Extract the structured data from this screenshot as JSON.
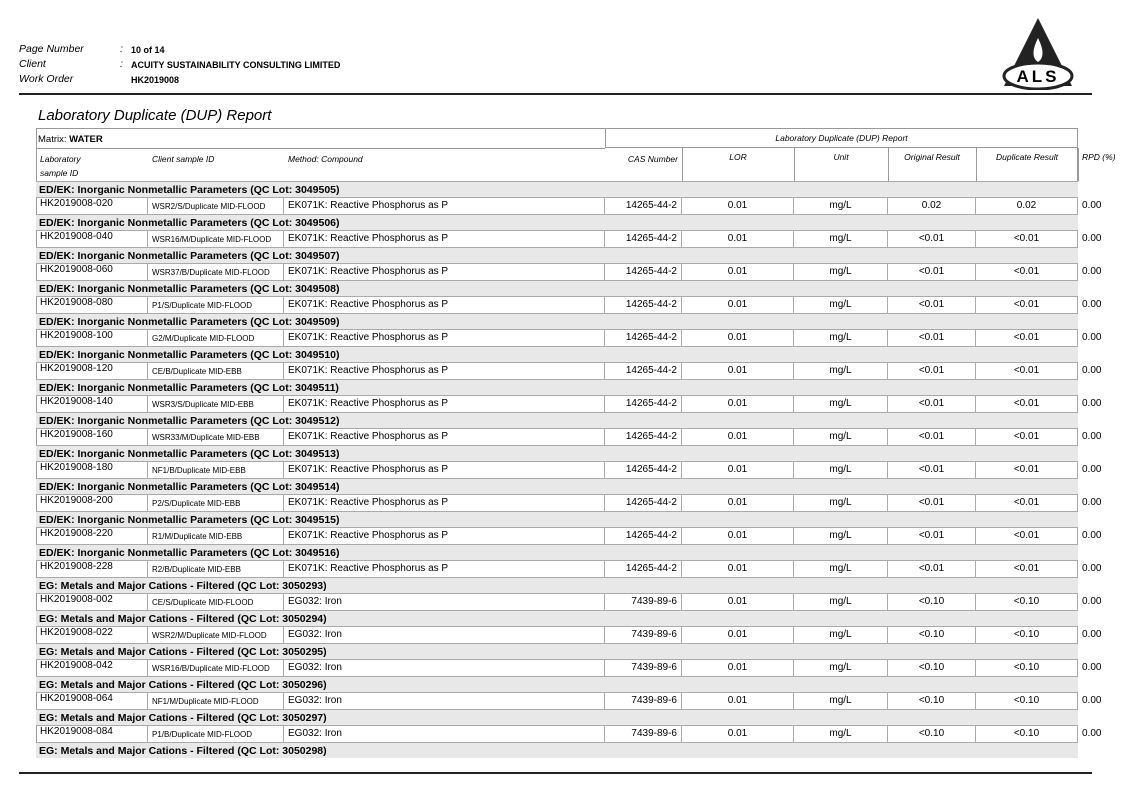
{
  "header": {
    "fields": [
      {
        "label": "Page Number",
        "sep": ":",
        "value": "10 of 14"
      },
      {
        "label": "Client",
        "sep": ":",
        "value": "ACUITY SUSTAINABILITY CONSULTING LIMITED"
      },
      {
        "label": "Work Order",
        "value": "HK2019008"
      }
    ]
  },
  "logo": "ALS",
  "title": "Laboratory Duplicate (DUP) Report",
  "matrix": {
    "label": "Matrix:",
    "value": "WATER"
  },
  "table": {
    "group_header": "Laboratory Duplicate (DUP) Report",
    "columns": [
      "Laboratory sample ID",
      "Client sample ID",
      "Method: Compound",
      "CAS Number",
      "LOR",
      "Unit",
      "Original Result",
      "Duplicate Result",
      "RPD (%)"
    ],
    "groups": [
      {
        "heading": "ED/EK: Inorganic Nonmetallic Parameters  (QC Lot: 3049505)",
        "rows": [
          [
            "HK2019008-020",
            "WSR2/S/Duplicate MID-FLOOD",
            "EK071K: Reactive Phosphorus as P",
            "14265-44-2",
            "0.01",
            "mg/L",
            "0.02",
            "0.02",
            "0.00"
          ]
        ]
      },
      {
        "heading": "ED/EK: Inorganic Nonmetallic Parameters  (QC Lot: 3049506)",
        "rows": [
          [
            "HK2019008-040",
            "WSR16/M/Duplicate MID-FLOOD",
            "EK071K: Reactive Phosphorus as P",
            "14265-44-2",
            "0.01",
            "mg/L",
            "<0.01",
            "<0.01",
            "0.00"
          ]
        ]
      },
      {
        "heading": "ED/EK: Inorganic Nonmetallic Parameters  (QC Lot: 3049507)",
        "rows": [
          [
            "HK2019008-060",
            "WSR37/B/Duplicate MID-FLOOD",
            "EK071K: Reactive Phosphorus as P",
            "14265-44-2",
            "0.01",
            "mg/L",
            "<0.01",
            "<0.01",
            "0.00"
          ]
        ]
      },
      {
        "heading": "ED/EK: Inorganic Nonmetallic Parameters  (QC Lot: 3049508)",
        "rows": [
          [
            "HK2019008-080",
            "P1/S/Duplicate MID-FLOOD",
            "EK071K: Reactive Phosphorus as P",
            "14265-44-2",
            "0.01",
            "mg/L",
            "<0.01",
            "<0.01",
            "0.00"
          ]
        ]
      },
      {
        "heading": "ED/EK: Inorganic Nonmetallic Parameters  (QC Lot: 3049509)",
        "rows": [
          [
            "HK2019008-100",
            "G2/M/Duplicate MID-FLOOD",
            "EK071K: Reactive Phosphorus as P",
            "14265-44-2",
            "0.01",
            "mg/L",
            "<0.01",
            "<0.01",
            "0.00"
          ]
        ]
      },
      {
        "heading": "ED/EK: Inorganic Nonmetallic Parameters  (QC Lot: 3049510)",
        "rows": [
          [
            "HK2019008-120",
            "CE/B/Duplicate MID-EBB",
            "EK071K: Reactive Phosphorus as P",
            "14265-44-2",
            "0.01",
            "mg/L",
            "<0.01",
            "<0.01",
            "0.00"
          ]
        ]
      },
      {
        "heading": "ED/EK: Inorganic Nonmetallic Parameters  (QC Lot: 3049511)",
        "rows": [
          [
            "HK2019008-140",
            "WSR3/S/Duplicate MID-EBB",
            "EK071K: Reactive Phosphorus as P",
            "14265-44-2",
            "0.01",
            "mg/L",
            "<0.01",
            "<0.01",
            "0.00"
          ]
        ]
      },
      {
        "heading": "ED/EK: Inorganic Nonmetallic Parameters  (QC Lot: 3049512)",
        "rows": [
          [
            "HK2019008-160",
            "WSR33/M/Duplicate MID-EBB",
            "EK071K: Reactive Phosphorus as P",
            "14265-44-2",
            "0.01",
            "mg/L",
            "<0.01",
            "<0.01",
            "0.00"
          ]
        ]
      },
      {
        "heading": "ED/EK: Inorganic Nonmetallic Parameters  (QC Lot: 3049513)",
        "rows": [
          [
            "HK2019008-180",
            "NF1/B/Duplicate MID-EBB",
            "EK071K: Reactive Phosphorus as P",
            "14265-44-2",
            "0.01",
            "mg/L",
            "<0.01",
            "<0.01",
            "0.00"
          ]
        ]
      },
      {
        "heading": "ED/EK: Inorganic Nonmetallic Parameters  (QC Lot: 3049514)",
        "rows": [
          [
            "HK2019008-200",
            "P2/S/Duplicate MID-EBB",
            "EK071K: Reactive Phosphorus as P",
            "14265-44-2",
            "0.01",
            "mg/L",
            "<0.01",
            "<0.01",
            "0.00"
          ]
        ]
      },
      {
        "heading": "ED/EK: Inorganic Nonmetallic Parameters  (QC Lot: 3049515)",
        "rows": [
          [
            "HK2019008-220",
            "R1/M/Duplicate MID-EBB",
            "EK071K: Reactive Phosphorus as P",
            "14265-44-2",
            "0.01",
            "mg/L",
            "<0.01",
            "<0.01",
            "0.00"
          ]
        ]
      },
      {
        "heading": "ED/EK: Inorganic Nonmetallic Parameters  (QC Lot: 3049516)",
        "rows": [
          [
            "HK2019008-228",
            "R2/B/Duplicate MID-EBB",
            "EK071K: Reactive Phosphorus as P",
            "14265-44-2",
            "0.01",
            "mg/L",
            "<0.01",
            "<0.01",
            "0.00"
          ]
        ]
      },
      {
        "heading": "EG: Metals and Major Cations - Filtered  (QC Lot: 3050293)",
        "rows": [
          [
            "HK2019008-002",
            "CE/S/Duplicate MID-FLOOD",
            "EG032: Iron",
            "7439-89-6",
            "0.01",
            "mg/L",
            "<0.10",
            "<0.10",
            "0.00"
          ]
        ]
      },
      {
        "heading": "EG: Metals and Major Cations - Filtered  (QC Lot: 3050294)",
        "rows": [
          [
            "HK2019008-022",
            "WSR2/M/Duplicate MID-FLOOD",
            "EG032: Iron",
            "7439-89-6",
            "0.01",
            "mg/L",
            "<0.10",
            "<0.10",
            "0.00"
          ]
        ]
      },
      {
        "heading": "EG: Metals and Major Cations - Filtered  (QC Lot: 3050295)",
        "rows": [
          [
            "HK2019008-042",
            "WSR16/B/Duplicate MID-FLOOD",
            "EG032: Iron",
            "7439-89-6",
            "0.01",
            "mg/L",
            "<0.10",
            "<0.10",
            "0.00"
          ]
        ]
      },
      {
        "heading": "EG: Metals and Major Cations - Filtered  (QC Lot: 3050296)",
        "rows": [
          [
            "HK2019008-064",
            "NF1/M/Duplicate MID-FLOOD",
            "EG032: Iron",
            "7439-89-6",
            "0.01",
            "mg/L",
            "<0.10",
            "<0.10",
            "0.00"
          ]
        ]
      },
      {
        "heading": "EG: Metals and Major Cations - Filtered  (QC Lot: 3050297)",
        "rows": [
          [
            "HK2019008-084",
            "P1/B/Duplicate MID-FLOOD",
            "EG032: Iron",
            "7439-89-6",
            "0.01",
            "mg/L",
            "<0.10",
            "<0.10",
            "0.00"
          ]
        ]
      },
      {
        "heading": "EG: Metals and Major Cations - Filtered  (QC Lot: 3050298)",
        "rows": []
      }
    ]
  }
}
